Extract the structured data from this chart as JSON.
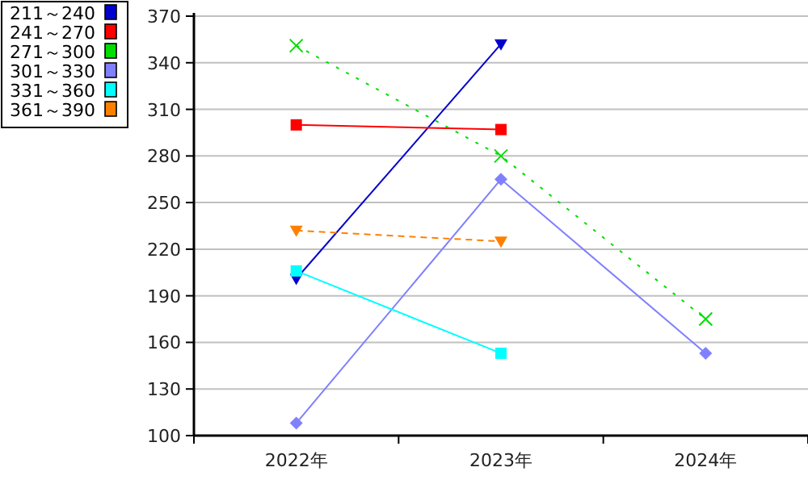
{
  "chart_data": {
    "type": "line",
    "categories": [
      "2022年",
      "2023年",
      "2024年"
    ],
    "series": [
      {
        "name": "211～240",
        "color": "#0000cc",
        "marker": "triangle",
        "values": [
          201,
          352,
          null
        ]
      },
      {
        "name": "241～270",
        "color": "#ff0000",
        "marker": "square",
        "values": [
          300,
          297,
          null
        ]
      },
      {
        "name": "271～300",
        "color": "#00dd00",
        "marker": "cross",
        "line_style": "dotted",
        "values": [
          351,
          280,
          175
        ]
      },
      {
        "name": "301～330",
        "color": "#8080ff",
        "marker": "diamond",
        "values": [
          108,
          265,
          153
        ]
      },
      {
        "name": "331～360",
        "color": "#00ffff",
        "marker": "square",
        "values": [
          206,
          153,
          null
        ]
      },
      {
        "name": "361～390",
        "color": "#ff8000",
        "marker": "triangle",
        "line_style": "dashed",
        "values": [
          232,
          225,
          null
        ]
      }
    ],
    "ylim": [
      100,
      370
    ],
    "yticks": [
      100,
      130,
      160,
      190,
      220,
      250,
      280,
      310,
      340,
      370
    ],
    "grid": "y",
    "legend": "top left"
  }
}
